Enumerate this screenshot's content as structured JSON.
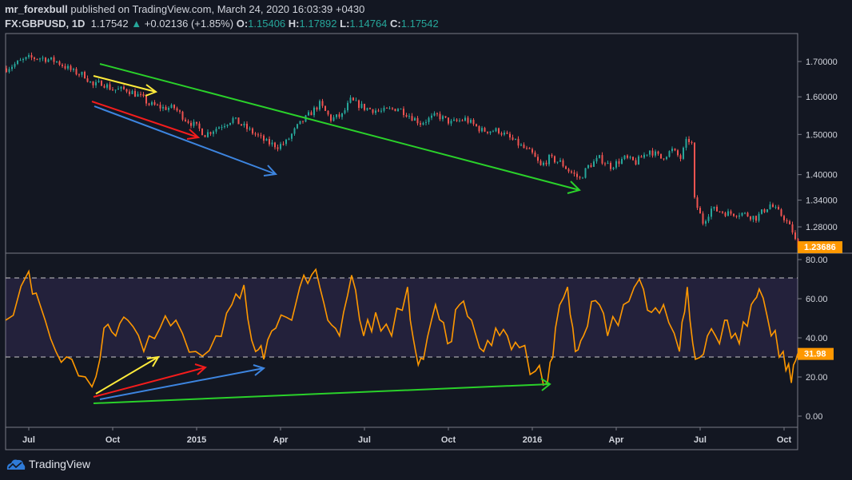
{
  "header": {
    "author": "mr_forexbull",
    "published_text": "published on TradingView.com, March 24, 2020 16:03:39 +0430",
    "symbol": "FX:GBPUSD, 1D",
    "last": "1.17542",
    "change": "+0.02136 (+1.85%)",
    "o_label": "O:",
    "o": "1.15406",
    "h_label": "H:",
    "h": "1.17892",
    "l_label": "L:",
    "l": "1.14764",
    "c_label": "C:",
    "c": "1.17542"
  },
  "footer": {
    "brand": "TradingView"
  },
  "colors": {
    "background": "#131722",
    "up": "#26a69a",
    "down": "#ef5350",
    "rsi_line": "#ff9800",
    "last_badge": "#ff9800"
  },
  "chart_data": [
    {
      "type": "candlestick",
      "title": "GBPUSD 1D",
      "x_unit": "months since Jul 2014",
      "price_ticks": [
        "1.70000",
        "1.60000",
        "1.50000",
        "1.40000",
        "1.34000",
        "1.28000"
      ],
      "last_price_label": "1.23686",
      "scale": "log",
      "close_series": [
        [
          -0.8,
          1.68
        ],
        [
          -0.3,
          1.7
        ],
        [
          0,
          1.71
        ],
        [
          0.5,
          1.71
        ],
        [
          1,
          1.7
        ],
        [
          1.6,
          1.67
        ],
        [
          2,
          1.66
        ],
        [
          2.3,
          1.63
        ],
        [
          2.6,
          1.64
        ],
        [
          3,
          1.62
        ],
        [
          3.5,
          1.62
        ],
        [
          4,
          1.6
        ],
        [
          4.3,
          1.58
        ],
        [
          4.8,
          1.57
        ],
        [
          5.2,
          1.57
        ],
        [
          5.6,
          1.54
        ],
        [
          6,
          1.52
        ],
        [
          6.3,
          1.5
        ],
        [
          6.8,
          1.52
        ],
        [
          7.3,
          1.54
        ],
        [
          7.7,
          1.52
        ],
        [
          8.1,
          1.5
        ],
        [
          8.5,
          1.48
        ],
        [
          8.9,
          1.47
        ],
        [
          9.2,
          1.48
        ],
        [
          9.6,
          1.52
        ],
        [
          10,
          1.55
        ],
        [
          10.4,
          1.58
        ],
        [
          10.8,
          1.54
        ],
        [
          11.2,
          1.55
        ],
        [
          11.5,
          1.59
        ],
        [
          12,
          1.57
        ],
        [
          12.6,
          1.56
        ],
        [
          13.2,
          1.57
        ],
        [
          13.6,
          1.55
        ],
        [
          14,
          1.53
        ],
        [
          14.6,
          1.55
        ],
        [
          15.1,
          1.53
        ],
        [
          15.6,
          1.54
        ],
        [
          16.2,
          1.51
        ],
        [
          16.8,
          1.51
        ],
        [
          17.2,
          1.49
        ],
        [
          17.6,
          1.47
        ],
        [
          18,
          1.45
        ],
        [
          18.3,
          1.42
        ],
        [
          18.6,
          1.44
        ],
        [
          19,
          1.43
        ],
        [
          19.3,
          1.41
        ],
        [
          19.7,
          1.39
        ],
        [
          20,
          1.42
        ],
        [
          20.4,
          1.44
        ],
        [
          20.8,
          1.42
        ],
        [
          21.3,
          1.44
        ],
        [
          21.7,
          1.43
        ],
        [
          22.2,
          1.46
        ],
        [
          22.6,
          1.44
        ],
        [
          23,
          1.46
        ],
        [
          23.3,
          1.44
        ],
        [
          23.55,
          1.49
        ],
        [
          23.75,
          1.47
        ],
        [
          23.8,
          1.34
        ],
        [
          24.1,
          1.29
        ],
        [
          24.4,
          1.32
        ],
        [
          25,
          1.31
        ],
        [
          25.5,
          1.31
        ],
        [
          26,
          1.3
        ],
        [
          26.5,
          1.33
        ],
        [
          27,
          1.3
        ],
        [
          27.3,
          1.27
        ],
        [
          27.6,
          1.21
        ]
      ]
    },
    {
      "type": "line",
      "title": "RSI",
      "x_unit": "months since Jul 2014",
      "rsi_ticks": [
        "80.00",
        "60.00",
        "40.00",
        "20.00",
        "0.00"
      ],
      "ylim": [
        0,
        80
      ],
      "band": [
        30,
        70
      ],
      "last_value_label": "31.98",
      "series": [
        [
          -0.83,
          49
        ],
        [
          0,
          74
        ],
        [
          0.4,
          57
        ],
        [
          0.97,
          33
        ],
        [
          1.54,
          29
        ],
        [
          2.26,
          15
        ],
        [
          2.69,
          45
        ],
        [
          3.11,
          41
        ],
        [
          3.54,
          49
        ],
        [
          4.11,
          33
        ],
        [
          4.69,
          45
        ],
        [
          5.26,
          49
        ],
        [
          5.97,
          33
        ],
        [
          6.69,
          41
        ],
        [
          7.26,
          57
        ],
        [
          7.69,
          67
        ],
        [
          8.11,
          33
        ],
        [
          8.4,
          29
        ],
        [
          8.83,
          45
        ],
        [
          9.4,
          49
        ],
        [
          9.83,
          72
        ],
        [
          10.26,
          75
        ],
        [
          10.69,
          49
        ],
        [
          11.11,
          41
        ],
        [
          11.54,
          72
        ],
        [
          11.97,
          41
        ],
        [
          12.4,
          53
        ],
        [
          12.97,
          41
        ],
        [
          13.54,
          66
        ],
        [
          13.83,
          33
        ],
        [
          14.11,
          29
        ],
        [
          14.54,
          57
        ],
        [
          14.97,
          37
        ],
        [
          15.4,
          57
        ],
        [
          15.83,
          49
        ],
        [
          16.26,
          33
        ],
        [
          16.69,
          45
        ],
        [
          17.11,
          41
        ],
        [
          17.54,
          35
        ],
        [
          18.11,
          23
        ],
        [
          18.54,
          17
        ],
        [
          18.83,
          45
        ],
        [
          19.26,
          66
        ],
        [
          19.54,
          33
        ],
        [
          19.83,
          41
        ],
        [
          20.26,
          59
        ],
        [
          20.69,
          41
        ],
        [
          21.26,
          57
        ],
        [
          21.83,
          70
        ],
        [
          22.26,
          53
        ],
        [
          22.69,
          57
        ],
        [
          23.26,
          33
        ],
        [
          23.54,
          66
        ],
        [
          23.83,
          29
        ],
        [
          24.26,
          41
        ],
        [
          24.69,
          37
        ],
        [
          24.97,
          49
        ],
        [
          25.4,
          37
        ],
        [
          25.83,
          57
        ],
        [
          26.11,
          65
        ],
        [
          26.54,
          41
        ],
        [
          26.97,
          33
        ],
        [
          27.26,
          17
        ],
        [
          27.49,
          31.98
        ]
      ]
    }
  ],
  "x_ticks": [
    [
      "Jul",
      0
    ],
    [
      "Oct",
      3
    ],
    [
      "2015",
      6
    ],
    [
      "Apr",
      9
    ],
    [
      "Jul",
      12
    ],
    [
      "Oct",
      15
    ],
    [
      "2016",
      18
    ],
    [
      "Apr",
      21
    ],
    [
      "Jul",
      24
    ],
    [
      "Oct",
      27
    ]
  ]
}
